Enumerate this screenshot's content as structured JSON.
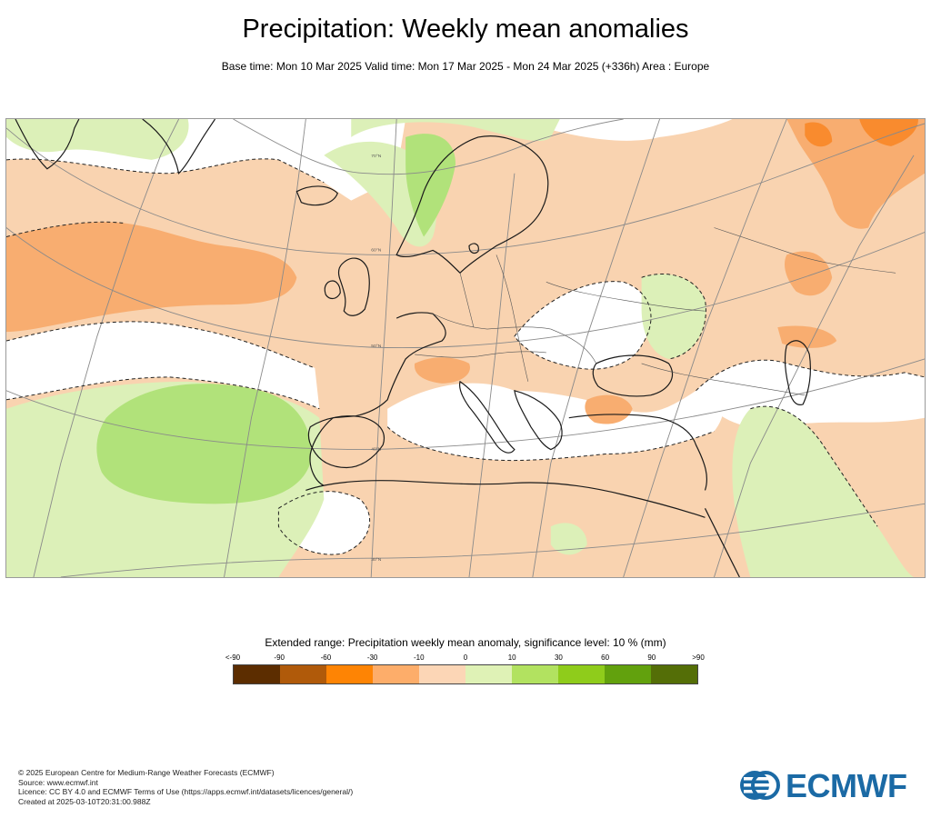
{
  "title": "Precipitation: Weekly mean anomalies",
  "subtitle": "Base time: Mon 10 Mar 2025 Valid time: Mon 17 Mar 2025 - Mon 24 Mar 2025 (+336h) Area : Europe",
  "map": {
    "lat_labels": [
      "70°N",
      "60°N",
      "50°N",
      "40°N",
      "30°N"
    ],
    "colors": {
      "ocean_bg": "#ffffff",
      "neg_10_0": "#f9d3b0",
      "neg_30_10": "#f8ad70",
      "neg_60_30": "#f98b2e",
      "pos_0_10": "#dcf0b8",
      "pos_10_30": "#b1e27a",
      "coastline": "#1a1a1a",
      "graticule": "#8a8a8a"
    }
  },
  "legend": {
    "title": "Extended range: Precipitation weekly mean anomaly, significance level: 10 % (mm)",
    "ticks": [
      "<-90",
      "-90",
      "-60",
      "-30",
      "-10",
      "0",
      "10",
      "30",
      "60",
      "90",
      ">90"
    ],
    "colors": [
      "#5c2d00",
      "#b05a0a",
      "#fe8404",
      "#fdad6a",
      "#fcd6b6",
      "#dff2b6",
      "#b2e260",
      "#8fcc1b",
      "#62a10d",
      "#546e07"
    ]
  },
  "footer": {
    "line1": "© 2025 European Centre for Medium-Range Weather Forecasts (ECMWF)",
    "line2": "Source: www.ecmwf.int",
    "line3": "Licence: CC BY 4.0 and ECMWF Terms of Use (https://apps.ecmwf.int/datasets/licences/general/)",
    "line4": "Created at 2025-03-10T20:31:00.988Z"
  },
  "logo": {
    "text": "ECMWF",
    "color": "#1b6aa5"
  }
}
